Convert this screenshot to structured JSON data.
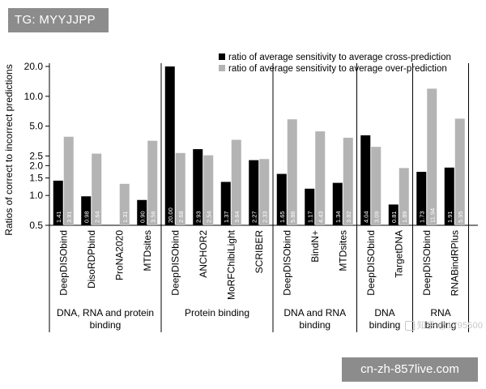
{
  "tag_label": "TG: MYYJJPP",
  "site_label": "cn-zh-857live.com",
  "watermark_text": "知乎 @1795500",
  "chart_data": {
    "type": "bar",
    "scale": "log",
    "ylabel": "Ratios of correct to incorrect predictions",
    "xlabel": "",
    "ylim": [
      0.5,
      20
    ],
    "y_ticks": [
      {
        "value": 0.5,
        "label": "0.5"
      },
      {
        "value": 1.0,
        "label": "1.0"
      },
      {
        "value": 1.5,
        "label": "1.5"
      },
      {
        "value": 2.0,
        "label": "2.0"
      },
      {
        "value": 2.5,
        "label": "2.5"
      },
      {
        "value": 5.0,
        "label": "5.0"
      },
      {
        "value": 10.0,
        "label": "10.0"
      },
      {
        "value": 20.0,
        "label": "20.0"
      }
    ],
    "legend_position": "top-right",
    "series": [
      {
        "name": "ratio of average sensitivity to average cross-prediction",
        "color": "#000000",
        "values": [
          1.41,
          0.98,
          null,
          0.9,
          20.0,
          2.93,
          1.37,
          2.27,
          1.65,
          1.17,
          1.34,
          4.04,
          0.81,
          1.73,
          1.91
        ],
        "labels": [
          "1.41",
          "0.98",
          "",
          "0.90",
          "20.00",
          "2.93",
          "1.37",
          "2.27",
          "1.65",
          "1.17",
          "1.34",
          "4.04",
          "0.81",
          "1.73",
          "1.91"
        ]
      },
      {
        "name": "ratio of average sensitivity to average over-prediction",
        "color": "#b4b4b4",
        "values": [
          3.91,
          2.64,
          1.31,
          3.56,
          2.68,
          2.54,
          3.64,
          2.33,
          5.86,
          4.43,
          3.82,
          3.09,
          1.89,
          11.94,
          5.95
        ],
        "labels": [
          "3.91",
          "2.64",
          "1.31",
          "3.56",
          "2.68",
          "2.54",
          "3.64",
          "2.33",
          "5.86",
          "4.43",
          "3.82",
          "3.09",
          "1.89",
          "11.94",
          "5.95"
        ]
      }
    ],
    "categories": [
      "DeepDISObind",
      "DisoRDPbind",
      "ProNA2020",
      "MTDsites",
      "DeepDISObind",
      "ANCHOR2",
      "MoRFChibiLight",
      "SCRIBER",
      "DeepDISObind",
      "BindN+",
      "MTDsites",
      "DeepDISObind",
      "TargetDNA",
      "DeepDISObind",
      "RNABindRPlus"
    ],
    "groups": [
      {
        "label": [
          "DNA, RNA and protein",
          "binding"
        ],
        "start": 0,
        "count": 4
      },
      {
        "label": [
          "Protein binding"
        ],
        "start": 4,
        "count": 4
      },
      {
        "label": [
          "DNA and RNA",
          "binding"
        ],
        "start": 8,
        "count": 3
      },
      {
        "label": [
          "DNA",
          "binding"
        ],
        "start": 11,
        "count": 2
      },
      {
        "label": [
          "RNA",
          "binding"
        ],
        "start": 13,
        "count": 2
      }
    ]
  }
}
